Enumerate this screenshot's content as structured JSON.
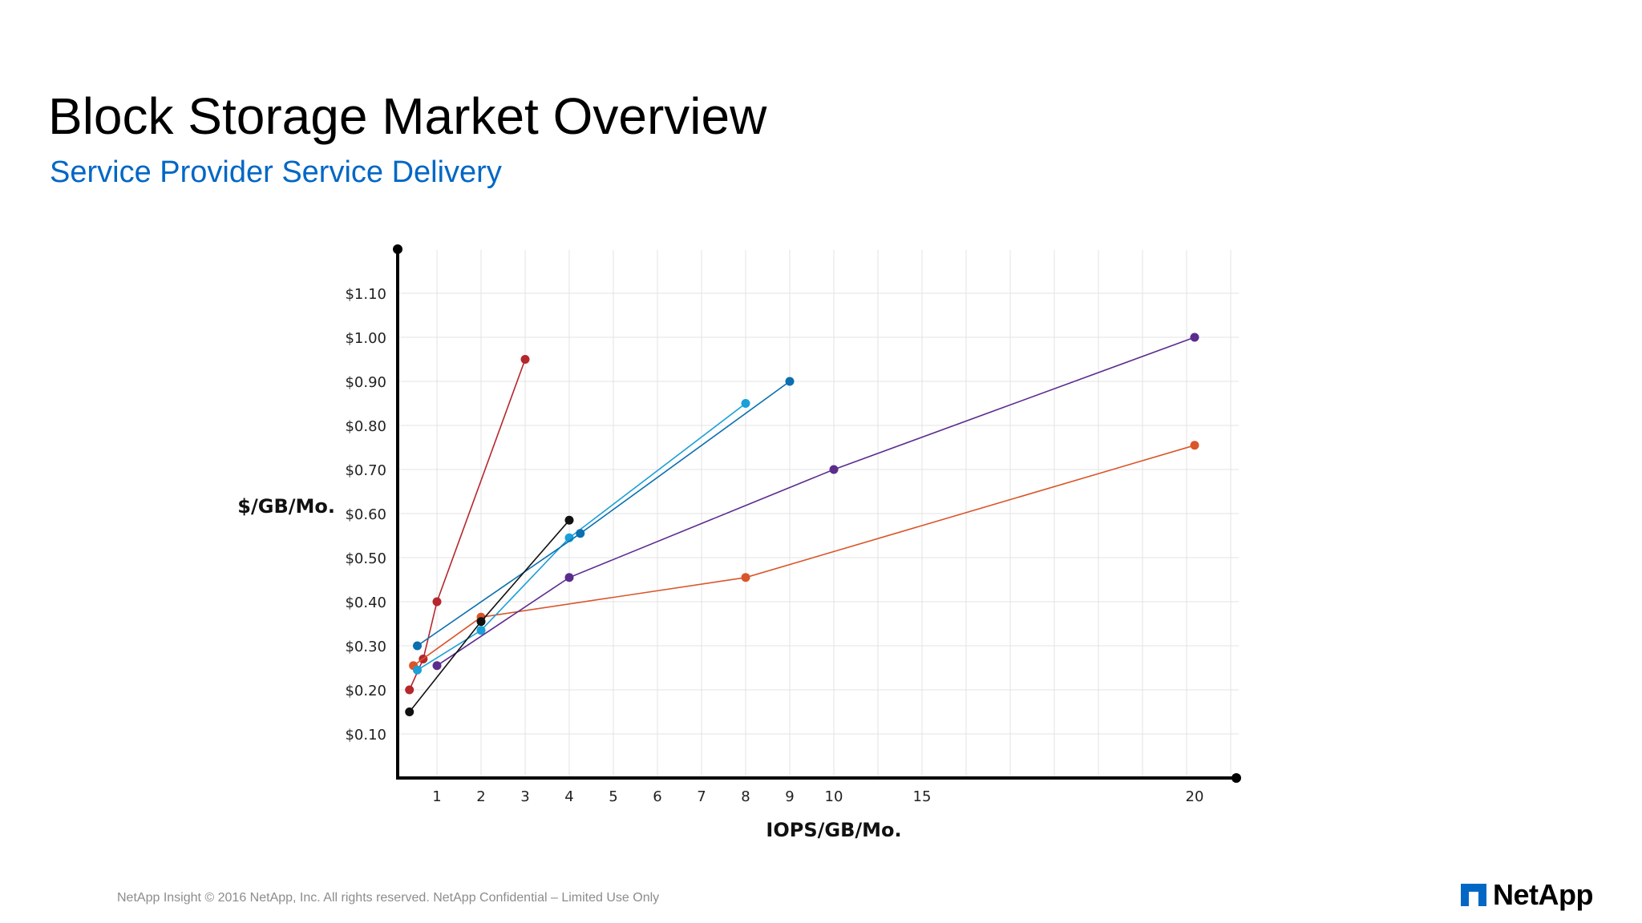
{
  "slide": {
    "title": "Block Storage Market Overview",
    "subtitle": "Service Provider Service Delivery",
    "footer": "NetApp Insight  © 2016 NetApp, Inc. All rights reserved. NetApp Confidential – Limited Use Only",
    "logo_text": "NetApp",
    "logo_color": "#0067c5"
  },
  "chart_data": {
    "type": "line",
    "title": "",
    "xlabel": "IOPS/GB/Mo.",
    "ylabel": "$/GB/Mo.",
    "x_ticks": [
      {
        "label": "1",
        "value": 1
      },
      {
        "label": "2",
        "value": 2
      },
      {
        "label": "3",
        "value": 3
      },
      {
        "label": "4",
        "value": 4
      },
      {
        "label": "5",
        "value": 5
      },
      {
        "label": "6",
        "value": 6
      },
      {
        "label": "7",
        "value": 7
      },
      {
        "label": "8",
        "value": 8
      },
      {
        "label": "9",
        "value": 9
      },
      {
        "label": "10",
        "value": 10
      },
      {
        "label": "15",
        "value": 15
      },
      {
        "label": "20",
        "value": 20
      }
    ],
    "y_ticks": [
      {
        "label": "$0.10",
        "value": 0.1
      },
      {
        "label": "$0.20",
        "value": 0.2
      },
      {
        "label": "$0.30",
        "value": 0.3
      },
      {
        "label": "$0.40",
        "value": 0.4
      },
      {
        "label": "$0.50",
        "value": 0.5
      },
      {
        "label": "$0.60",
        "value": 0.6
      },
      {
        "label": "$0.70",
        "value": 0.7
      },
      {
        "label": "$0.80",
        "value": 0.8
      },
      {
        "label": "$0.90",
        "value": 0.9
      },
      {
        "label": "$1.00",
        "value": 1.0
      },
      {
        "label": "$1.10",
        "value": 1.1
      }
    ],
    "ylim": [
      0,
      1.2
    ],
    "grid": true,
    "legend": "none",
    "series": [
      {
        "color": "#b5272d",
        "points": [
          [
            0.3,
            0.2
          ],
          [
            0.65,
            0.27
          ],
          [
            1,
            0.4
          ],
          [
            3,
            0.95
          ]
        ]
      },
      {
        "color": "#d9562a",
        "points": [
          [
            0.4,
            0.255
          ],
          [
            2,
            0.365
          ],
          [
            8,
            0.455
          ],
          [
            20,
            0.755
          ]
        ]
      },
      {
        "color": "#5b2c8e",
        "points": [
          [
            1,
            0.255
          ],
          [
            4,
            0.455
          ],
          [
            10,
            0.7
          ],
          [
            20,
            1.0
          ]
        ]
      },
      {
        "color": "#1a9fd8",
        "points": [
          [
            0.5,
            0.245
          ],
          [
            2,
            0.335
          ],
          [
            4,
            0.545
          ],
          [
            8,
            0.85
          ]
        ]
      },
      {
        "color": "#0b6fb0",
        "points": [
          [
            0.5,
            0.3
          ],
          [
            4.25,
            0.555
          ],
          [
            9,
            0.9
          ]
        ]
      },
      {
        "color": "#111111",
        "points": [
          [
            0.3,
            0.15
          ],
          [
            2,
            0.355
          ],
          [
            4,
            0.585
          ]
        ]
      }
    ]
  }
}
